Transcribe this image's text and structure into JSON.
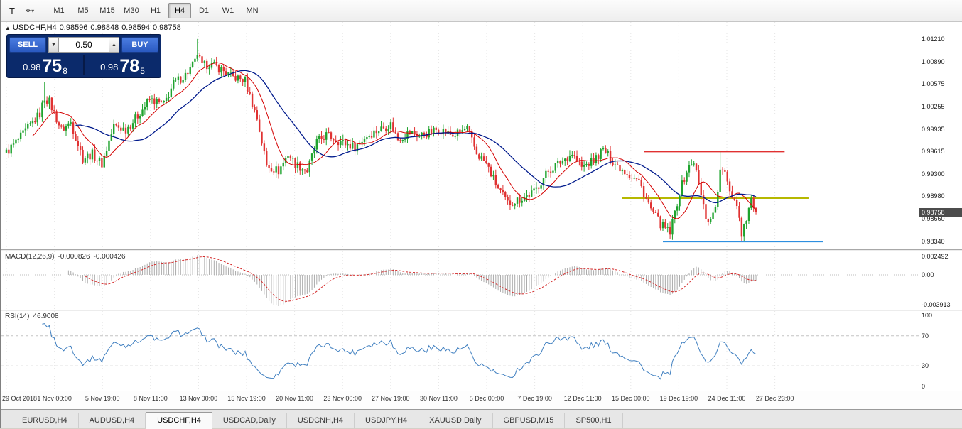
{
  "toolbar": {
    "tools": [
      {
        "name": "text-tool",
        "glyph": "T",
        "dropdown": false
      },
      {
        "name": "crosshair-tool",
        "glyph": "⌖",
        "dropdown": true
      }
    ],
    "timeframes": [
      {
        "label": "M1",
        "active": false
      },
      {
        "label": "M5",
        "active": false
      },
      {
        "label": "M15",
        "active": false
      },
      {
        "label": "M30",
        "active": false
      },
      {
        "label": "H1",
        "active": false
      },
      {
        "label": "H4",
        "active": true
      },
      {
        "label": "D1",
        "active": false
      },
      {
        "label": "W1",
        "active": false
      },
      {
        "label": "MN",
        "active": false
      }
    ]
  },
  "chart": {
    "title_symbol": "USDCHF,H4",
    "ohlc": {
      "open": "0.98596",
      "high": "0.98848",
      "low": "0.98594",
      "close": "0.98758"
    },
    "trade_panel": {
      "sell_label": "SELL",
      "buy_label": "BUY",
      "lot_size": "0.50",
      "sell_price_small": "0.98",
      "sell_price_big": "75",
      "sell_price_sup": "8",
      "buy_price_small": "0.98",
      "buy_price_big": "78",
      "buy_price_sup": "5"
    },
    "price_axis": {
      "ticks": [
        "1.01210",
        "1.00890",
        "1.00575",
        "1.00255",
        "0.99935",
        "0.99615",
        "0.99300",
        "0.98980",
        "0.98660",
        "0.98340"
      ],
      "current_price": "0.98758"
    }
  },
  "macd": {
    "label": "MACD(12,26,9)",
    "value": "-0.000826",
    "signal_value": "-0.000426",
    "axis": [
      "0.002492",
      "0.00",
      "-0.003913"
    ]
  },
  "rsi": {
    "label": "RSI(14)",
    "value": "46.9008",
    "axis": [
      "100",
      "70",
      "30",
      "0"
    ]
  },
  "time_axis": {
    "labels": [
      "29 Oct 2018",
      "1 Nov 00:00",
      "5 Nov 19:00",
      "8 Nov 11:00",
      "13 Nov 00:00",
      "15 Nov 19:00",
      "20 Nov 11:00",
      "23 Nov 00:00",
      "27 Nov 19:00",
      "30 Nov 11:00",
      "5 Dec 00:00",
      "7 Dec 19:00",
      "12 Dec 11:00",
      "15 Dec 00:00",
      "19 Dec 19:00",
      "24 Dec 11:00",
      "27 Dec 23:00"
    ]
  },
  "tabs": [
    {
      "label": "EURUSD,H4",
      "active": false
    },
    {
      "label": "AUDUSD,H4",
      "active": false
    },
    {
      "label": "USDCHF,H4",
      "active": true
    },
    {
      "label": "USDCAD,Daily",
      "active": false
    },
    {
      "label": "USDCNH,H4",
      "active": false
    },
    {
      "label": "USDJPY,H4",
      "active": false
    },
    {
      "label": "XAUUSD,Daily",
      "active": false
    },
    {
      "label": "GBPUSD,M15",
      "active": false
    },
    {
      "label": "SP500,H1",
      "active": false
    }
  ],
  "chart_data": {
    "type": "candlestick",
    "symbol": "USDCHF",
    "timeframe": "H4",
    "visible_range": {
      "start": "29 Oct 2018",
      "end": "27 Dec 2018 23:00"
    },
    "last_bar": {
      "open": 0.98596,
      "high": 0.98848,
      "low": 0.98594,
      "close": 0.98758
    },
    "y_axis_ticks": [
      1.0121,
      1.0089,
      1.00575,
      1.00255,
      0.99935,
      0.99615,
      0.993,
      0.9898,
      0.9866,
      0.9834
    ],
    "y_range": [
      0.9823,
      1.0145
    ],
    "x_labels": [
      "29 Oct 2018",
      "1 Nov 00:00",
      "5 Nov 19:00",
      "8 Nov 11:00",
      "13 Nov 00:00",
      "15 Nov 19:00",
      "20 Nov 11:00",
      "23 Nov 00:00",
      "27 Nov 19:00",
      "30 Nov 11:00",
      "5 Dec 00:00",
      "7 Dec 19:00",
      "12 Dec 11:00",
      "15 Dec 00:00",
      "19 Dec 19:00",
      "24 Dec 11:00",
      "27 Dec 23:00"
    ],
    "num_candles": 315,
    "price_path": [
      [
        0,
        0.996
      ],
      [
        6,
        0.9982
      ],
      [
        14,
        1.0015
      ],
      [
        16,
        1.0038
      ],
      [
        18,
        1.0032
      ],
      [
        23,
        0.9992
      ],
      [
        27,
        1.0003
      ],
      [
        32,
        0.9952
      ],
      [
        36,
        0.9958
      ],
      [
        40,
        0.9944
      ],
      [
        45,
        0.9998
      ],
      [
        50,
        0.9993
      ],
      [
        54,
        1.0008
      ],
      [
        60,
        1.0035
      ],
      [
        66,
        1.0028
      ],
      [
        70,
        1.0058
      ],
      [
        75,
        1.007
      ],
      [
        79,
        1.0088
      ],
      [
        80,
        1.01
      ],
      [
        82,
        1.0082
      ],
      [
        85,
        1.0086
      ],
      [
        90,
        1.0078
      ],
      [
        94,
        1.0068
      ],
      [
        100,
        1.0062
      ],
      [
        105,
        1.0008
      ],
      [
        109,
        0.9942
      ],
      [
        114,
        0.9934
      ],
      [
        118,
        0.9958
      ],
      [
        121,
        0.9944
      ],
      [
        126,
        0.9934
      ],
      [
        130,
        0.9975
      ],
      [
        134,
        0.9985
      ],
      [
        141,
        0.9974
      ],
      [
        146,
        0.9968
      ],
      [
        151,
        0.9984
      ],
      [
        157,
        0.9994
      ],
      [
        161,
        1.0
      ],
      [
        164,
        0.9979
      ],
      [
        169,
        0.9989
      ],
      [
        173,
        0.9984
      ],
      [
        178,
        0.9989
      ],
      [
        181,
        0.9994
      ],
      [
        187,
        0.9984
      ],
      [
        193,
        0.9994
      ],
      [
        197,
        0.9959
      ],
      [
        201,
        0.9944
      ],
      [
        206,
        0.9909
      ],
      [
        210,
        0.9888
      ],
      [
        215,
        0.9894
      ],
      [
        221,
        0.9904
      ],
      [
        227,
        0.9934
      ],
      [
        233,
        0.9949
      ],
      [
        237,
        0.9959
      ],
      [
        241,
        0.9939
      ],
      [
        246,
        0.9949
      ],
      [
        250,
        0.9964
      ],
      [
        255,
        0.9944
      ],
      [
        261,
        0.9929
      ],
      [
        265,
        0.9919
      ],
      [
        270,
        0.9879
      ],
      [
        274,
        0.9859
      ],
      [
        278,
        0.9846
      ],
      [
        282,
        0.9904
      ],
      [
        285,
        0.9934
      ],
      [
        288,
        0.9948
      ],
      [
        291,
        0.9899
      ],
      [
        293,
        0.9869
      ],
      [
        295,
        0.9864
      ],
      [
        298,
        0.9899
      ],
      [
        299,
        0.9938
      ],
      [
        301,
        0.9928
      ],
      [
        304,
        0.9899
      ],
      [
        306,
        0.9889
      ],
      [
        308,
        0.9846
      ],
      [
        310,
        0.9869
      ],
      [
        312,
        0.9893
      ],
      [
        314,
        0.9876
      ]
    ],
    "wick_overrides": [
      {
        "i": 16,
        "high": 1.006
      },
      {
        "i": 80,
        "high": 1.0121
      },
      {
        "i": 278,
        "low": 0.9838
      },
      {
        "i": 299,
        "high": 0.9961
      },
      {
        "i": 308,
        "low": 0.9834
      }
    ],
    "hlines": [
      {
        "name": "resistance-line",
        "price": 0.99615,
        "color": "#e03131",
        "i1": 267,
        "i2": 326
      },
      {
        "name": "mid-support-line",
        "price": 0.98955,
        "color": "#b6b800",
        "i1": 258,
        "i2": 336
      },
      {
        "name": "support-line",
        "price": 0.9834,
        "color": "#2e8fe0",
        "i1": 275,
        "i2": 342
      }
    ],
    "indicators": {
      "ma_fast": {
        "period": 12,
        "color": "#d40000"
      },
      "ma_slow": {
        "period": 30,
        "color": "#001a8c"
      },
      "macd": {
        "fast": 12,
        "slow": 26,
        "signal": 9,
        "value": -0.000826,
        "signal_value": -0.000426,
        "scale_max": 0.002492,
        "scale_min": -0.003913
      },
      "rsi": {
        "period": 14,
        "value": 46.9008,
        "levels": [
          70,
          30
        ]
      }
    },
    "colors": {
      "candle_up": "#1fa32e",
      "candle_down": "#e03232",
      "macd_hist": "#ababab",
      "macd_signal": "#d42a2a",
      "rsi_line": "#3f7fc0",
      "grid": "#e5e5e5"
    }
  }
}
